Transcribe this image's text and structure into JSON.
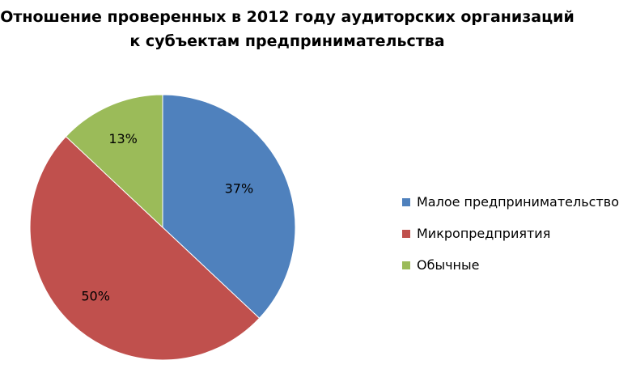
{
  "chart_data": {
    "type": "pie",
    "title_lines": [
      "Отношение проверенных в 2012 году аудиторских организаций",
      "к субъектам предпринимательства"
    ],
    "start_angle_deg": 0,
    "direction": "clockwise",
    "slices": [
      {
        "name": "Малое предпринимательство",
        "value": 37,
        "label": "37%",
        "color": "#4f81bd"
      },
      {
        "name": "Микропредприятия",
        "value": 50,
        "label": "50%",
        "color": "#c0504d"
      },
      {
        "name": "Обычные",
        "value": 13,
        "label": "13%",
        "color": "#9bbb59"
      }
    ],
    "legend_position": "right"
  }
}
